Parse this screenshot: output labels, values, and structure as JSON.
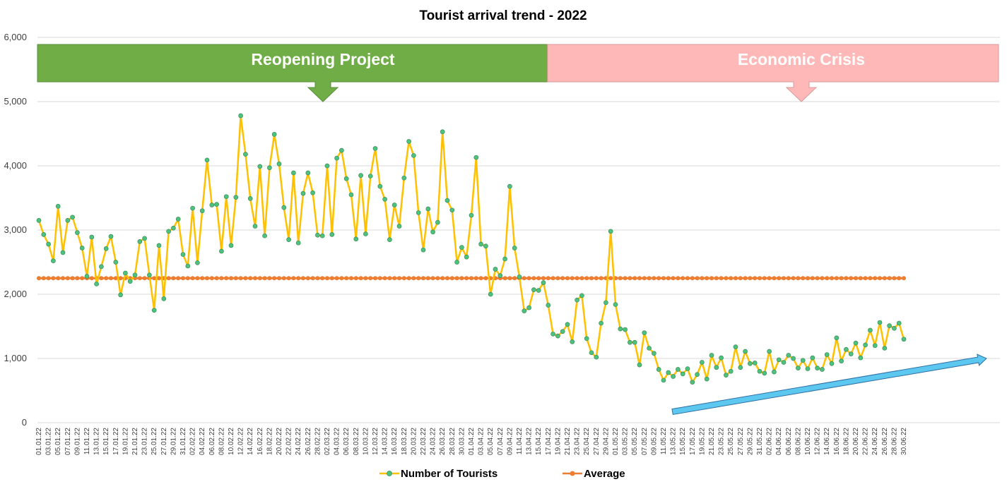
{
  "chart_data": {
    "type": "line",
    "title": "Tourist arrival trend - 2022",
    "xlabel": "",
    "ylabel": "",
    "ylim": [
      0,
      6000
    ],
    "yticks": [
      0,
      1000,
      2000,
      3000,
      4000,
      5000,
      6000
    ],
    "ytick_labels": [
      "0",
      "1,000",
      "2,000",
      "3,000",
      "4,000",
      "5,000",
      "6,000"
    ],
    "grid": "horizontal",
    "legend_position": "bottom",
    "start_date": "2022-01-01",
    "x": [
      "01.01.22",
      "02.01.22",
      "03.01.22",
      "04.01.22",
      "05.01.22",
      "06.01.22",
      "07.01.22",
      "08.01.22",
      "09.01.22",
      "10.01.22",
      "11.01.22",
      "12.01.22",
      "13.01.22",
      "14.01.22",
      "15.01.22",
      "16.01.22",
      "17.01.22",
      "18.01.22",
      "19.01.22",
      "20.01.22",
      "21.01.22",
      "22.01.22",
      "23.01.22",
      "24.01.22",
      "25.01.22",
      "26.01.22",
      "27.01.22",
      "28.01.22",
      "29.01.22",
      "30.01.22",
      "31.01.22",
      "01.02.22",
      "02.02.22",
      "03.02.22",
      "04.02.22",
      "05.02.22",
      "06.02.22",
      "07.02.22",
      "08.02.22",
      "09.02.22",
      "10.02.22",
      "11.02.22",
      "12.02.22",
      "13.02.22",
      "14.02.22",
      "15.02.22",
      "16.02.22",
      "17.02.22",
      "18.02.22",
      "19.02.22",
      "20.02.22",
      "21.02.22",
      "22.02.22",
      "23.02.22",
      "24.02.22",
      "25.02.22",
      "26.02.22",
      "27.02.22",
      "28.02.22",
      "01.03.22",
      "02.03.22",
      "03.03.22",
      "04.03.22",
      "05.03.22",
      "06.03.22",
      "07.03.22",
      "08.03.22",
      "09.03.22",
      "10.03.22",
      "11.03.22",
      "12.03.22",
      "13.03.22",
      "14.03.22",
      "15.03.22",
      "16.03.22",
      "17.03.22",
      "18.03.22",
      "19.03.22",
      "20.03.22",
      "21.03.22",
      "22.03.22",
      "23.03.22",
      "24.03.22",
      "25.03.22",
      "26.03.22",
      "27.03.22",
      "28.03.22",
      "29.03.22",
      "30.03.22",
      "31.03.22",
      "01.04.22",
      "02.04.22",
      "03.04.22",
      "04.04.22",
      "05.04.22",
      "06.04.22",
      "07.04.22",
      "08.04.22",
      "09.04.22",
      "10.04.22",
      "11.04.22",
      "12.04.22",
      "13.04.22",
      "14.04.22",
      "15.04.22",
      "16.04.22",
      "17.04.22",
      "18.04.22",
      "19.04.22",
      "20.04.22",
      "21.04.22",
      "22.04.22",
      "23.04.22",
      "24.04.22",
      "25.04.22",
      "26.04.22",
      "27.04.22",
      "28.04.22",
      "29.04.22",
      "30.04.22",
      "01.05.22",
      "02.05.22",
      "03.05.22",
      "04.05.22",
      "05.05.22",
      "06.05.22",
      "07.05.22",
      "08.05.22",
      "09.05.22",
      "10.05.22",
      "11.05.22",
      "12.05.22",
      "13.05.22",
      "14.05.22",
      "15.05.22",
      "16.05.22",
      "17.05.22",
      "18.05.22",
      "19.05.22",
      "20.05.22",
      "21.05.22",
      "22.05.22",
      "23.05.22",
      "24.05.22",
      "25.05.22",
      "26.05.22",
      "27.05.22",
      "28.05.22",
      "29.05.22",
      "30.05.22",
      "31.05.22",
      "01.06.22",
      "02.06.22",
      "03.06.22",
      "04.06.22",
      "05.06.22",
      "06.06.22",
      "07.06.22",
      "08.06.22",
      "09.06.22",
      "10.06.22",
      "11.06.22",
      "12.06.22",
      "13.06.22",
      "14.06.22",
      "15.06.22",
      "16.06.22",
      "17.06.22",
      "18.06.22",
      "19.06.22",
      "20.06.22",
      "21.06.22",
      "22.06.22",
      "23.06.22",
      "24.06.22",
      "25.06.22",
      "26.06.22",
      "27.06.22",
      "28.06.22",
      "29.06.22",
      "30.06.22"
    ],
    "xtick_labels": [
      "01.01.22",
      "03.01.22",
      "05.01.22",
      "07.01.22",
      "09.01.22",
      "11.01.22",
      "13.01.22",
      "15.01.22",
      "17.01.22",
      "19.01.22",
      "21.01.22",
      "23.01.22",
      "25.01.22",
      "27.01.22",
      "29.01.22",
      "31.01.22",
      "02.02.22",
      "04.02.22",
      "06.02.22",
      "08.02.22",
      "10.02.22",
      "12.02.22",
      "14.02.22",
      "16.02.22",
      "18.02.22",
      "20.02.22",
      "22.02.22",
      "24.02.22",
      "26.02.22",
      "28.02.22",
      "02.03.22",
      "04.03.22",
      "06.03.22",
      "08.03.22",
      "10.03.22",
      "12.03.22",
      "14.03.22",
      "16.03.22",
      "18.03.22",
      "20.03.22",
      "22.03.22",
      "24.03.22",
      "26.03.22",
      "28.03.22",
      "30.03.22",
      "01.04.22",
      "03.04.22",
      "05.04.22",
      "07.04.22",
      "09.04.22",
      "11.04.22",
      "13.04.22",
      "15.04.22",
      "17.04.22",
      "19.04.22",
      "21.04.22",
      "23.04.22",
      "25.04.22",
      "27.04.22",
      "29.04.22",
      "01.05.22",
      "03.05.22",
      "05.05.22",
      "07.05.22",
      "09.05.22",
      "11.05.22",
      "13.05.22",
      "15.05.22",
      "17.05.22",
      "19.05.22",
      "21.05.22",
      "23.05.22",
      "25.05.22",
      "27.05.22",
      "29.05.22",
      "31.05.22",
      "02.06.22",
      "04.06.22",
      "06.06.22",
      "08.06.22",
      "10.06.22",
      "12.06.22",
      "14.06.22",
      "16.06.22",
      "18.06.22",
      "20.06.22",
      "22.06.22",
      "24.06.22",
      "26.06.22",
      "28.06.22",
      "30.06.22"
    ],
    "series": [
      {
        "name": "Number of Tourists",
        "color": "#FFC000",
        "marker_color": "#4DC27D",
        "values": [
          3150,
          2930,
          2780,
          2520,
          3370,
          2650,
          3150,
          3200,
          2960,
          2720,
          2280,
          2890,
          2160,
          2430,
          2710,
          2900,
          2500,
          1990,
          2330,
          2200,
          2300,
          2820,
          2870,
          2300,
          1750,
          2760,
          1930,
          2980,
          3030,
          3170,
          2620,
          2440,
          3340,
          2490,
          3300,
          4090,
          3390,
          3400,
          2670,
          3520,
          2760,
          3510,
          4780,
          4180,
          3490,
          3060,
          3990,
          2910,
          3970,
          4490,
          4030,
          3350,
          2850,
          3890,
          2800,
          3570,
          3890,
          3580,
          2920,
          2910,
          4000,
          2930,
          4120,
          4240,
          3800,
          3550,
          2860,
          3850,
          2940,
          3840,
          4270,
          3680,
          3480,
          2850,
          3390,
          3060,
          3810,
          4380,
          4160,
          3270,
          2690,
          3330,
          2970,
          3120,
          4530,
          3460,
          3310,
          2500,
          2730,
          2580,
          3230,
          4130,
          2780,
          2750,
          2000,
          2390,
          2290,
          2550,
          3680,
          2720,
          2270,
          1740,
          1790,
          2070,
          2060,
          2180,
          1830,
          1380,
          1350,
          1420,
          1530,
          1260,
          1910,
          1980,
          1310,
          1090,
          1020,
          1550,
          1870,
          2980,
          1840,
          1460,
          1450,
          1250,
          1250,
          900,
          1400,
          1160,
          1080,
          830,
          660,
          780,
          720,
          830,
          760,
          840,
          630,
          750,
          940,
          680,
          1050,
          860,
          1010,
          740,
          800,
          1180,
          860,
          1110,
          920,
          930,
          800,
          770,
          1110,
          790,
          980,
          940,
          1050,
          1000,
          850,
          970,
          840,
          1010,
          850,
          830,
          1060,
          920,
          1320,
          960,
          1140,
          1070,
          1240,
          1010,
          1210,
          1440,
          1200,
          1560,
          1160,
          1510,
          1470,
          1550,
          1300
        ]
      },
      {
        "name": "Average",
        "color": "#ED7D31",
        "marker_color": "#ED7D31",
        "value": 2250
      }
    ],
    "annotations": [
      {
        "label": "Reopening Project",
        "color": "#70AD47",
        "x_start": "01.01.22",
        "x_end": "17.04.22"
      },
      {
        "label": "Economic Crisis",
        "color": "#FFB8B8",
        "x_start": "17.04.22",
        "x_end": "01.07.22"
      },
      {
        "label": "",
        "type": "trend-arrow",
        "color": "#5CC8F0",
        "x_start": "13.05.22",
        "y_start": 170,
        "x_end": "01.07.22",
        "y_end": 1000
      }
    ]
  }
}
